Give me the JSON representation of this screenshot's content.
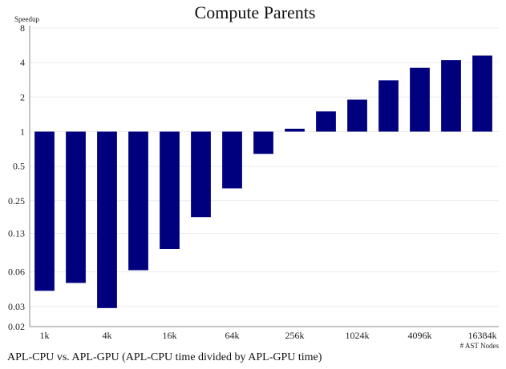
{
  "chart_data": {
    "type": "bar",
    "title": "Compute Parents",
    "ylabel": "Speedup",
    "xlabel": "# AST Nodes",
    "caption": "APL-CPU vs. APL-GPU (APL-CPU time divided by APL-GPU time)",
    "yscale": "log2",
    "baseline": 1,
    "ylim": [
      0.02,
      8
    ],
    "y_ticks": [
      "8",
      "4",
      "2",
      "1",
      "0.5",
      "0.25",
      "0.13",
      "0.06",
      "0.03",
      "0.02"
    ],
    "x_tick_labels": [
      "1k",
      "4k",
      "16k",
      "64k",
      "256k",
      "1024k",
      "4096k",
      "16384k"
    ],
    "bar_color": "#00007f",
    "grid": true,
    "series": [
      {
        "values": [
          0.041,
          0.048,
          0.029,
          0.062,
          0.095,
          0.18,
          0.32,
          0.64,
          1.06,
          1.5,
          1.9,
          2.8,
          3.6,
          4.2,
          4.6
        ]
      }
    ]
  }
}
